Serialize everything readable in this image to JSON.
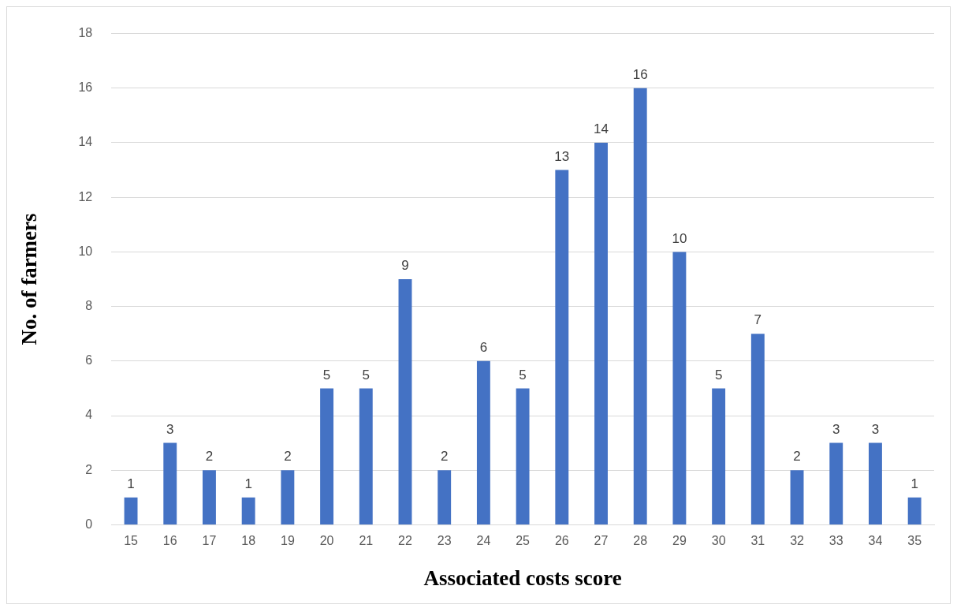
{
  "chart_data": {
    "type": "bar",
    "xlabel": "Associated costs score",
    "ylabel": "No. of farmers",
    "categories": [
      "15",
      "16",
      "17",
      "18",
      "19",
      "20",
      "21",
      "22",
      "23",
      "24",
      "25",
      "26",
      "27",
      "28",
      "29",
      "30",
      "31",
      "32",
      "33",
      "34",
      "35"
    ],
    "values": [
      1,
      3,
      2,
      1,
      2,
      5,
      5,
      9,
      2,
      6,
      5,
      13,
      14,
      16,
      10,
      5,
      7,
      2,
      3,
      3,
      1
    ],
    "color": "#4472c4",
    "ylim": [
      0,
      18
    ],
    "yticks": [
      0,
      2,
      4,
      6,
      8,
      10,
      12,
      14,
      16,
      18
    ],
    "grid": "y",
    "data_labels": true,
    "legend": false
  }
}
